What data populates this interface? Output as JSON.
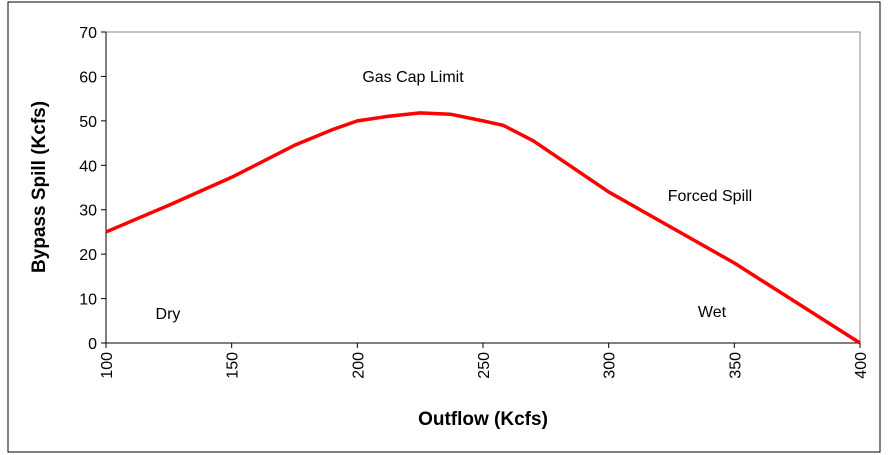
{
  "chart_data": {
    "type": "line",
    "x_label": "Outflow (Kcfs)",
    "y_label": "Bypass Spill (Kcfs)",
    "x": [
      100,
      125,
      150,
      175,
      190,
      200,
      212,
      225,
      237,
      250,
      258,
      270,
      300,
      325,
      350,
      375,
      400
    ],
    "series": [
      {
        "color": "#ff0000",
        "values": [
          25,
          31,
          37.3,
          44.5,
          48,
          50,
          51,
          51.8,
          51.5,
          50,
          49,
          45.5,
          34,
          26,
          18,
          9,
          0
        ]
      }
    ],
    "xlim": [
      100,
      400
    ],
    "xticks": [
      100,
      150,
      200,
      250,
      300,
      350,
      400
    ],
    "ylim": [
      0,
      70
    ],
    "yticks": [
      0,
      10,
      20,
      30,
      40,
      50,
      60,
      70
    ],
    "annotations": [
      "Gas Cap Limit",
      "Forced Spill",
      "Dry",
      "Wet"
    ],
    "grid": false
  }
}
